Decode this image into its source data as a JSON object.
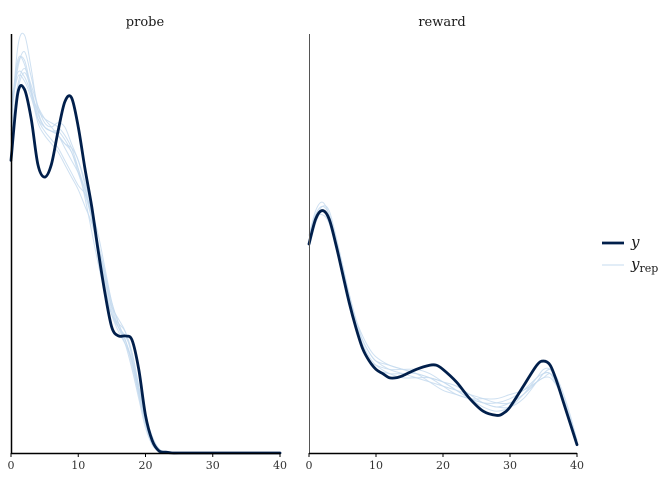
{
  "chart_data": {
    "type": "line",
    "subtype": "posterior predictive density overlay",
    "title": "",
    "xlabel": "",
    "ylabel": "",
    "xlim": [
      0,
      40
    ],
    "x_ticks": [
      0,
      10,
      20,
      30,
      40
    ],
    "y_axis_visible": false,
    "grid": false,
    "legend_position": "right",
    "legend": [
      {
        "key": "y",
        "label": "y",
        "subscript": "",
        "color": "#011f4b",
        "width": 2.8
      },
      {
        "key": "y_rep",
        "label": "y",
        "subscript": "rep",
        "color": "#c6dbef",
        "width": 1.0
      }
    ],
    "panels": [
      {
        "name": "probe",
        "ylim": [
          0,
          1.0
        ],
        "y": {
          "x": [
            0,
            1,
            2,
            3,
            4,
            5,
            6,
            7,
            8,
            9,
            10,
            11,
            12,
            13,
            14,
            15,
            16,
            17,
            18,
            19,
            20,
            21,
            22,
            23,
            24,
            25,
            30,
            35,
            40
          ],
          "values": [
            0.7,
            0.86,
            0.87,
            0.8,
            0.69,
            0.66,
            0.69,
            0.77,
            0.84,
            0.85,
            0.78,
            0.68,
            0.59,
            0.48,
            0.38,
            0.3,
            0.28,
            0.28,
            0.27,
            0.2,
            0.09,
            0.03,
            0.005,
            0.002,
            0.0,
            0.0,
            0.0,
            0.0,
            0.0
          ]
        },
        "y_rep": [
          {
            "x": [
              0,
              1,
              2,
              3,
              4,
              5,
              6,
              7,
              8,
              9,
              10,
              11,
              12,
              13,
              14,
              15,
              16,
              17,
              18,
              19,
              20,
              21,
              22,
              23,
              24,
              25,
              30,
              40
            ],
            "values": [
              0.78,
              0.97,
              1.0,
              0.92,
              0.82,
              0.78,
              0.77,
              0.76,
              0.74,
              0.72,
              0.67,
              0.62,
              0.56,
              0.48,
              0.4,
              0.33,
              0.29,
              0.26,
              0.22,
              0.15,
              0.08,
              0.03,
              0.01,
              0.0,
              0.0,
              0.0,
              0.0,
              0.0
            ]
          },
          {
            "x": [
              0,
              1,
              2,
              3,
              4,
              5,
              6,
              7,
              8,
              9,
              10,
              11,
              12,
              13,
              14,
              15,
              16,
              17,
              18,
              19,
              20,
              21,
              22,
              23,
              24,
              25,
              30,
              40
            ],
            "values": [
              0.8,
              0.92,
              0.96,
              0.9,
              0.83,
              0.79,
              0.78,
              0.79,
              0.78,
              0.74,
              0.7,
              0.65,
              0.58,
              0.5,
              0.42,
              0.34,
              0.3,
              0.27,
              0.21,
              0.14,
              0.07,
              0.02,
              0.005,
              0.0,
              0.0,
              0.0,
              0.0,
              0.0
            ]
          },
          {
            "x": [
              0,
              1,
              2,
              3,
              4,
              5,
              6,
              7,
              8,
              9,
              10,
              11,
              12,
              13,
              14,
              15,
              16,
              17,
              18,
              19,
              20,
              21,
              22,
              23,
              24,
              25,
              30,
              40
            ],
            "values": [
              0.82,
              0.9,
              0.89,
              0.85,
              0.8,
              0.78,
              0.77,
              0.76,
              0.73,
              0.7,
              0.67,
              0.63,
              0.57,
              0.5,
              0.43,
              0.36,
              0.31,
              0.27,
              0.22,
              0.15,
              0.08,
              0.03,
              0.005,
              0.0,
              0.0,
              0.0,
              0.0,
              0.0
            ]
          },
          {
            "x": [
              0,
              1,
              2,
              3,
              4,
              5,
              6,
              7,
              8,
              9,
              10,
              11,
              12,
              13,
              14,
              15,
              16,
              17,
              18,
              19,
              20,
              21,
              22,
              23,
              24,
              25,
              30,
              40
            ],
            "values": [
              0.76,
              0.88,
              0.92,
              0.88,
              0.83,
              0.8,
              0.78,
              0.76,
              0.74,
              0.73,
              0.7,
              0.64,
              0.56,
              0.47,
              0.39,
              0.33,
              0.3,
              0.28,
              0.24,
              0.16,
              0.08,
              0.03,
              0.01,
              0.0,
              0.0,
              0.0,
              0.0,
              0.0
            ]
          },
          {
            "x": [
              0,
              1,
              2,
              3,
              4,
              5,
              6,
              7,
              8,
              9,
              10,
              11,
              12,
              13,
              14,
              15,
              16,
              17,
              18,
              19,
              20,
              21,
              22,
              23,
              24,
              25,
              30,
              40
            ],
            "values": [
              0.79,
              0.93,
              0.94,
              0.87,
              0.8,
              0.77,
              0.75,
              0.73,
              0.7,
              0.67,
              0.64,
              0.62,
              0.58,
              0.52,
              0.44,
              0.36,
              0.31,
              0.27,
              0.22,
              0.14,
              0.07,
              0.02,
              0.005,
              0.0,
              0.0,
              0.0,
              0.0,
              0.0
            ]
          },
          {
            "x": [
              0,
              1,
              2,
              3,
              4,
              5,
              6,
              7,
              8,
              9,
              10,
              11,
              12,
              13,
              14,
              15,
              16,
              17,
              18,
              19,
              20,
              21,
              22,
              23,
              24,
              25,
              30,
              40
            ],
            "values": [
              0.84,
              0.91,
              0.9,
              0.86,
              0.82,
              0.8,
              0.79,
              0.78,
              0.76,
              0.73,
              0.68,
              0.61,
              0.53,
              0.45,
              0.38,
              0.33,
              0.31,
              0.29,
              0.24,
              0.16,
              0.09,
              0.04,
              0.01,
              0.0,
              0.0,
              0.0,
              0.0,
              0.0
            ]
          },
          {
            "x": [
              0,
              1,
              2,
              3,
              4,
              5,
              6,
              7,
              8,
              9,
              10,
              11,
              12,
              13,
              14,
              15,
              16,
              17,
              18,
              19,
              20,
              21,
              22,
              23,
              24,
              25,
              30,
              40
            ],
            "values": [
              0.81,
              0.94,
              0.93,
              0.86,
              0.79,
              0.76,
              0.74,
              0.72,
              0.69,
              0.66,
              0.63,
              0.59,
              0.55,
              0.49,
              0.42,
              0.35,
              0.3,
              0.26,
              0.2,
              0.13,
              0.06,
              0.02,
              0.005,
              0.0,
              0.0,
              0.0,
              0.0,
              0.0
            ]
          },
          {
            "x": [
              0,
              1,
              2,
              3,
              4,
              5,
              6,
              7,
              8,
              9,
              10,
              11,
              12,
              13,
              14,
              15,
              16,
              17,
              18,
              19,
              20,
              21,
              22,
              23,
              24,
              25,
              30,
              40
            ],
            "values": [
              0.77,
              0.87,
              0.91,
              0.87,
              0.81,
              0.78,
              0.77,
              0.77,
              0.75,
              0.72,
              0.68,
              0.63,
              0.57,
              0.49,
              0.41,
              0.35,
              0.32,
              0.29,
              0.23,
              0.15,
              0.08,
              0.03,
              0.01,
              0.0,
              0.0,
              0.0,
              0.0,
              0.0
            ]
          }
        ]
      },
      {
        "name": "reward",
        "ylim": [
          0,
          1.0
        ],
        "y": {
          "x": [
            0,
            1,
            2,
            3,
            4,
            5,
            6,
            7,
            8,
            9,
            10,
            11,
            12,
            13,
            14,
            16,
            18,
            19,
            20,
            22,
            24,
            26,
            28,
            29,
            30,
            32,
            34,
            35,
            36,
            37,
            38,
            39,
            40
          ],
          "values": [
            0.5,
            0.56,
            0.58,
            0.56,
            0.5,
            0.43,
            0.36,
            0.3,
            0.25,
            0.22,
            0.2,
            0.19,
            0.18,
            0.18,
            0.185,
            0.2,
            0.21,
            0.21,
            0.2,
            0.17,
            0.13,
            0.1,
            0.09,
            0.095,
            0.11,
            0.16,
            0.21,
            0.22,
            0.21,
            0.17,
            0.12,
            0.07,
            0.02
          ]
        },
        "y_rep": [
          {
            "x": [
              0,
              1,
              2,
              3,
              4,
              5,
              6,
              7,
              8,
              9,
              10,
              12,
              14,
              16,
              18,
              20,
              22,
              24,
              26,
              28,
              30,
              32,
              34,
              35,
              36,
              37,
              38,
              39,
              40
            ],
            "values": [
              0.51,
              0.57,
              0.59,
              0.57,
              0.51,
              0.44,
              0.37,
              0.31,
              0.27,
              0.24,
              0.22,
              0.2,
              0.19,
              0.18,
              0.17,
              0.16,
              0.15,
              0.14,
              0.13,
              0.12,
              0.12,
              0.14,
              0.17,
              0.19,
              0.19,
              0.17,
              0.13,
              0.08,
              0.03
            ]
          },
          {
            "x": [
              0,
              1,
              2,
              3,
              4,
              5,
              6,
              7,
              8,
              9,
              10,
              12,
              14,
              16,
              18,
              20,
              22,
              24,
              26,
              28,
              30,
              32,
              34,
              35,
              36,
              37,
              38,
              39,
              40
            ],
            "values": [
              0.52,
              0.58,
              0.6,
              0.57,
              0.5,
              0.42,
              0.35,
              0.3,
              0.26,
              0.23,
              0.21,
              0.19,
              0.18,
              0.18,
              0.18,
              0.17,
              0.16,
              0.14,
              0.12,
              0.11,
              0.11,
              0.13,
              0.17,
              0.19,
              0.2,
              0.18,
              0.14,
              0.09,
              0.03
            ]
          },
          {
            "x": [
              0,
              1,
              2,
              3,
              4,
              5,
              6,
              7,
              8,
              9,
              10,
              12,
              14,
              16,
              18,
              20,
              22,
              24,
              26,
              28,
              30,
              32,
              34,
              35,
              36,
              37,
              38,
              39,
              40
            ],
            "values": [
              0.49,
              0.55,
              0.58,
              0.56,
              0.51,
              0.45,
              0.38,
              0.32,
              0.27,
              0.24,
              0.22,
              0.21,
              0.2,
              0.19,
              0.18,
              0.16,
              0.14,
              0.13,
              0.12,
              0.12,
              0.13,
              0.15,
              0.18,
              0.19,
              0.19,
              0.16,
              0.12,
              0.08,
              0.03
            ]
          },
          {
            "x": [
              0,
              1,
              2,
              3,
              4,
              5,
              6,
              7,
              8,
              9,
              10,
              12,
              14,
              16,
              18,
              20,
              22,
              24,
              26,
              28,
              30,
              32,
              34,
              35,
              36,
              37,
              38,
              39,
              40
            ],
            "values": [
              0.5,
              0.56,
              0.57,
              0.55,
              0.49,
              0.43,
              0.37,
              0.31,
              0.26,
              0.22,
              0.2,
              0.19,
              0.19,
              0.19,
              0.18,
              0.17,
              0.15,
              0.13,
              0.11,
              0.1,
              0.11,
              0.14,
              0.18,
              0.2,
              0.2,
              0.17,
              0.13,
              0.08,
              0.02
            ]
          },
          {
            "x": [
              0,
              1,
              2,
              3,
              4,
              5,
              6,
              7,
              8,
              9,
              10,
              12,
              14,
              16,
              18,
              20,
              22,
              24,
              26,
              28,
              30,
              32,
              34,
              35,
              36,
              37,
              38,
              39,
              40
            ],
            "values": [
              0.52,
              0.57,
              0.58,
              0.56,
              0.5,
              0.44,
              0.38,
              0.32,
              0.28,
              0.25,
              0.23,
              0.21,
              0.2,
              0.19,
              0.17,
              0.15,
              0.14,
              0.13,
              0.13,
              0.13,
              0.14,
              0.15,
              0.17,
              0.18,
              0.18,
              0.16,
              0.13,
              0.08,
              0.03
            ]
          },
          {
            "x": [
              0,
              1,
              2,
              3,
              4,
              5,
              6,
              7,
              8,
              9,
              10,
              12,
              14,
              16,
              18,
              20,
              22,
              24,
              26,
              28,
              30,
              32,
              34,
              35,
              36,
              37,
              38,
              39,
              40
            ],
            "values": [
              0.5,
              0.56,
              0.59,
              0.58,
              0.52,
              0.45,
              0.37,
              0.3,
              0.25,
              0.22,
              0.21,
              0.2,
              0.2,
              0.2,
              0.19,
              0.17,
              0.15,
              0.13,
              0.12,
              0.11,
              0.12,
              0.14,
              0.17,
              0.18,
              0.19,
              0.17,
              0.13,
              0.08,
              0.03
            ]
          }
        ]
      }
    ]
  }
}
